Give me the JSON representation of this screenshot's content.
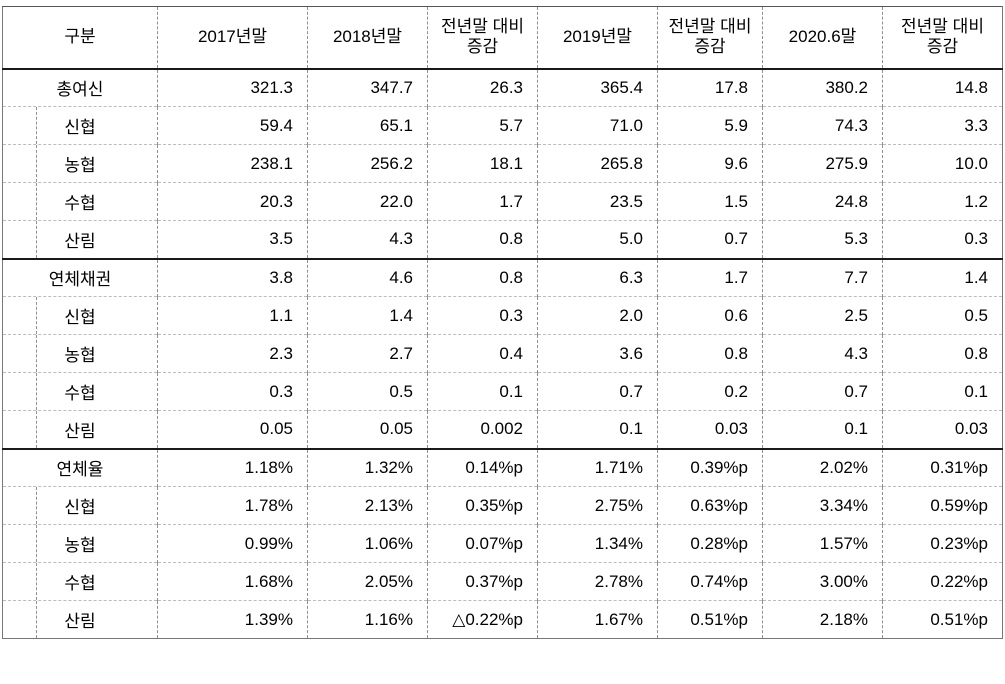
{
  "table": {
    "header": {
      "category": "구분",
      "columns": [
        "2017년말",
        "2018년말",
        "전년말 대비\n증감",
        "2019년말",
        "전년말 대비\n증감",
        "2020.6말",
        "전년말 대비\n증감"
      ]
    },
    "sections": [
      {
        "rows": [
          {
            "label": "총여신",
            "indent": false,
            "values": [
              "321.3",
              "347.7",
              "26.3",
              "365.4",
              "17.8",
              "380.2",
              "14.8"
            ]
          },
          {
            "label": "신협",
            "indent": true,
            "values": [
              "59.4",
              "65.1",
              "5.7",
              "71.0",
              "5.9",
              "74.3",
              "3.3"
            ]
          },
          {
            "label": "농협",
            "indent": true,
            "values": [
              "238.1",
              "256.2",
              "18.1",
              "265.8",
              "9.6",
              "275.9",
              "10.0"
            ]
          },
          {
            "label": "수협",
            "indent": true,
            "values": [
              "20.3",
              "22.0",
              "1.7",
              "23.5",
              "1.5",
              "24.8",
              "1.2"
            ]
          },
          {
            "label": "산림",
            "indent": true,
            "values": [
              "3.5",
              "4.3",
              "0.8",
              "5.0",
              "0.7",
              "5.3",
              "0.3"
            ]
          }
        ]
      },
      {
        "rows": [
          {
            "label": "연체채권",
            "indent": false,
            "values": [
              "3.8",
              "4.6",
              "0.8",
              "6.3",
              "1.7",
              "7.7",
              "1.4"
            ]
          },
          {
            "label": "신협",
            "indent": true,
            "values": [
              "1.1",
              "1.4",
              "0.3",
              "2.0",
              "0.6",
              "2.5",
              "0.5"
            ]
          },
          {
            "label": "농협",
            "indent": true,
            "values": [
              "2.3",
              "2.7",
              "0.4",
              "3.6",
              "0.8",
              "4.3",
              "0.8"
            ]
          },
          {
            "label": "수협",
            "indent": true,
            "values": [
              "0.3",
              "0.5",
              "0.1",
              "0.7",
              "0.2",
              "0.7",
              "0.1"
            ]
          },
          {
            "label": "산림",
            "indent": true,
            "values": [
              "0.05",
              "0.05",
              "0.002",
              "0.1",
              "0.03",
              "0.1",
              "0.03"
            ]
          }
        ]
      },
      {
        "rows": [
          {
            "label": "연체율",
            "indent": false,
            "values": [
              "1.18%",
              "1.32%",
              "0.14%p",
              "1.71%",
              "0.39%p",
              "2.02%",
              "0.31%p"
            ]
          },
          {
            "label": "신협",
            "indent": true,
            "values": [
              "1.78%",
              "2.13%",
              "0.35%p",
              "2.75%",
              "0.63%p",
              "3.34%",
              "0.59%p"
            ]
          },
          {
            "label": "농협",
            "indent": true,
            "values": [
              "0.99%",
              "1.06%",
              "0.07%p",
              "1.34%",
              "0.28%p",
              "1.57%",
              "0.23%p"
            ]
          },
          {
            "label": "수협",
            "indent": true,
            "values": [
              "1.68%",
              "2.05%",
              "0.37%p",
              "2.78%",
              "0.74%p",
              "3.00%",
              "0.22%p"
            ]
          },
          {
            "label": "산림",
            "indent": true,
            "values": [
              "1.39%",
              "1.16%",
              "△0.22%p",
              "1.67%",
              "0.51%p",
              "2.18%",
              "0.51%p"
            ]
          }
        ]
      }
    ]
  }
}
